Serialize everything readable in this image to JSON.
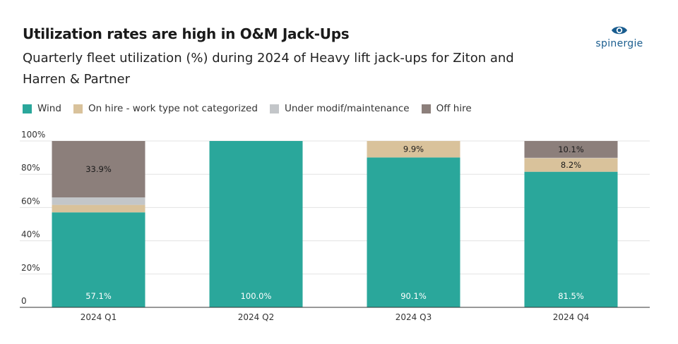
{
  "title": "Utilization rates are high in O&M Jack-Ups",
  "subtitle": "Quarterly fleet utilization (%) during 2024 of Heavy lift jack-ups for Ziton and Harren & Partner",
  "logo": {
    "text": "spinergie",
    "icon": "eye-logo-icon",
    "color": "#1a5d8f"
  },
  "chart_data": {
    "type": "bar",
    "stacked": true,
    "categories": [
      "2024 Q1",
      "2024 Q2",
      "2024 Q3",
      "2024 Q4"
    ],
    "series": [
      {
        "name": "Wind",
        "color": "#2aa79b",
        "values": [
          57.1,
          100.0,
          90.1,
          81.5
        ]
      },
      {
        "name": "On hire - work type not categorized",
        "color": "#d9c29b",
        "values": [
          4.5,
          0,
          9.9,
          8.2
        ]
      },
      {
        "name": "Under modif/maintenance",
        "color": "#c3c6c9",
        "values": [
          4.5,
          0,
          0,
          0.2
        ]
      },
      {
        "name": "Off hire",
        "color": "#8c7f7b",
        "values": [
          33.9,
          0,
          0,
          10.1
        ]
      }
    ],
    "data_labels": [
      {
        "category": "2024 Q1",
        "series": "Wind",
        "text": "57.1%"
      },
      {
        "category": "2024 Q1",
        "series": "Off hire",
        "text": "33.9%"
      },
      {
        "category": "2024 Q2",
        "series": "Wind",
        "text": "100.0%"
      },
      {
        "category": "2024 Q3",
        "series": "Wind",
        "text": "90.1%"
      },
      {
        "category": "2024 Q3",
        "series": "On hire - work type not categorized",
        "text": "9.9%"
      },
      {
        "category": "2024 Q4",
        "series": "Wind",
        "text": "81.5%"
      },
      {
        "category": "2024 Q4",
        "series": "On hire - work type not categorized",
        "text": "8.2%"
      },
      {
        "category": "2024 Q4",
        "series": "Off hire",
        "text": "10.1%"
      }
    ],
    "yticks": [
      "0",
      "20%",
      "40%",
      "60%",
      "80%",
      "100%"
    ],
    "ylim": [
      0,
      100
    ],
    "grid": true,
    "legend": "top-left"
  }
}
